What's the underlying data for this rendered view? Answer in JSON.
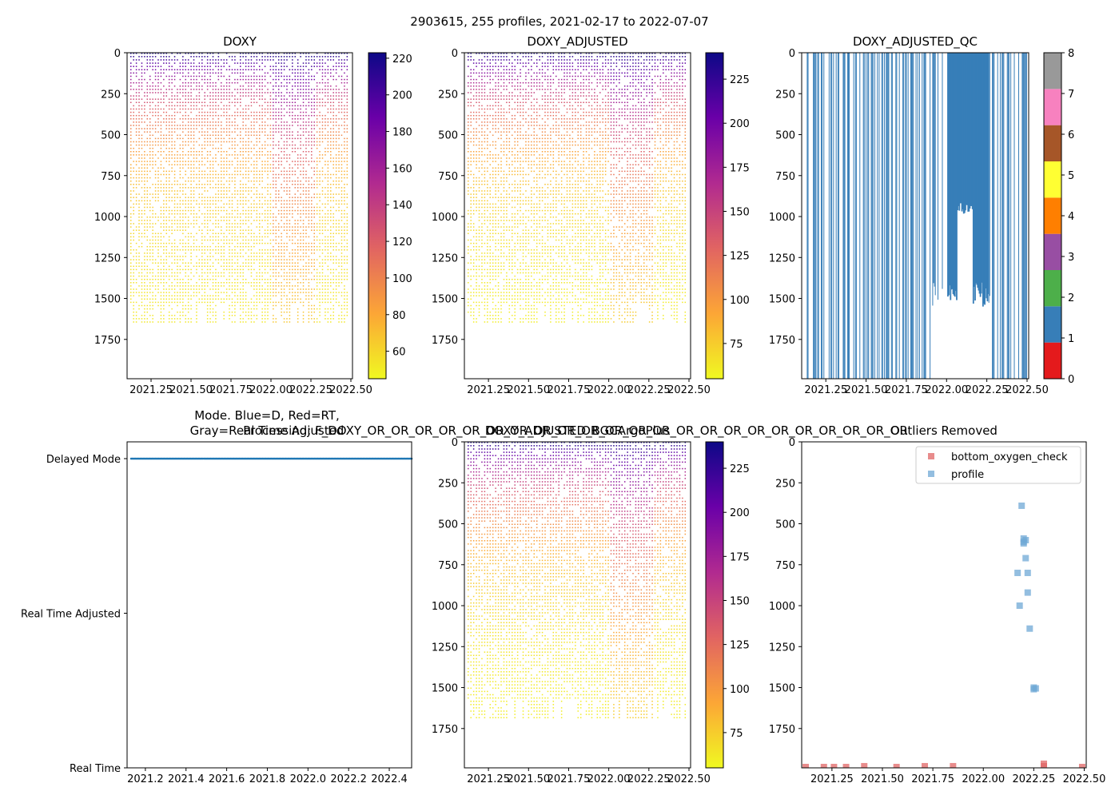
{
  "figure": {
    "suptitle": "2903615, 255 profiles, 2021-02-17 to 2022-07-07"
  },
  "colors": {
    "cmap_plasma_r": [
      "#f0f921",
      "#fca636",
      "#e16462",
      "#b12a90",
      "#6a00a8",
      "#0d0887"
    ],
    "qc_colors": [
      "#e41a1c",
      "#377eb8",
      "#4daf4a",
      "#984ea3",
      "#ff7f00",
      "#ffff33",
      "#a65628",
      "#f781bf",
      "#999999"
    ],
    "profile_blue": "#1f77b4",
    "scatter_blue": "#6fa8d6",
    "scatter_red": "#e06666"
  },
  "chart_data": [
    {
      "id": "doxy",
      "type": "heatmap",
      "title": "DOXY",
      "xlim": [
        2021.1,
        2022.51
      ],
      "ylim": [
        1990,
        0
      ],
      "xticks": [
        2021.25,
        2021.5,
        2021.75,
        2022.0,
        2022.25,
        2022.5
      ],
      "xtick_labels": [
        "2021.25",
        "2021.50",
        "2021.75",
        "2022.00",
        "2022.25",
        "2022.50"
      ],
      "yticks": [
        0,
        250,
        500,
        750,
        1000,
        1250,
        1500,
        1750
      ],
      "ytick_labels": [
        "0",
        "250",
        "500",
        "750",
        "1000",
        "1250",
        "1500",
        "1750"
      ],
      "colorbar": {
        "min": 45,
        "max": 223,
        "ticks": [
          "60",
          "80",
          "100",
          "120",
          "140",
          "160",
          "180",
          "200",
          "220"
        ],
        "tick_values": [
          60,
          80,
          100,
          120,
          140,
          160,
          180,
          200,
          220
        ]
      },
      "profile_depth_max": 1650,
      "surface_value": 220,
      "deep_value": 50
    },
    {
      "id": "doxy_adj",
      "type": "heatmap",
      "title": "DOXY_ADJUSTED",
      "xlim": [
        2021.1,
        2022.51
      ],
      "ylim": [
        1990,
        0
      ],
      "xticks": [
        2021.25,
        2021.5,
        2021.75,
        2022.0,
        2022.25,
        2022.5
      ],
      "xtick_labels": [
        "2021.25",
        "2021.50",
        "2021.75",
        "2022.00",
        "2022.25",
        "2022.50"
      ],
      "yticks": [
        0,
        250,
        500,
        750,
        1000,
        1250,
        1500,
        1750
      ],
      "ytick_labels": [
        "0",
        "250",
        "500",
        "750",
        "1000",
        "1250",
        "1500",
        "1750"
      ],
      "colorbar": {
        "min": 55,
        "max": 240,
        "ticks": [
          "75",
          "100",
          "125",
          "150",
          "175",
          "200",
          "225"
        ],
        "tick_values": [
          75,
          100,
          125,
          150,
          175,
          200,
          225
        ]
      },
      "profile_depth_max": 1650,
      "surface_value": 235,
      "deep_value": 58
    },
    {
      "id": "doxy_qc",
      "type": "heatmap",
      "title": "DOXY_ADJUSTED_QC",
      "xlim": [
        2021.1,
        2022.51
      ],
      "ylim": [
        1990,
        0
      ],
      "xticks": [
        2021.25,
        2021.5,
        2021.75,
        2022.0,
        2022.25,
        2022.5
      ],
      "xtick_labels": [
        "2021.25",
        "2021.50",
        "2021.75",
        "2022.00",
        "2022.25",
        "2022.50"
      ],
      "yticks": [
        0,
        250,
        500,
        750,
        1000,
        1250,
        1500,
        1750
      ],
      "ytick_labels": [
        "0",
        "250",
        "500",
        "750",
        "1000",
        "1250",
        "1500",
        "1750"
      ],
      "colorbar": {
        "min": 0,
        "max": 8,
        "ticks": [
          "0",
          "1",
          "2",
          "3",
          "4",
          "5",
          "6",
          "7",
          "8"
        ],
        "tick_values": [
          0,
          1,
          2,
          3,
          4,
          5,
          6,
          7,
          8
        ]
      },
      "qc_value": 1,
      "full_depth": 1990
    },
    {
      "id": "mode",
      "type": "scatter",
      "title": "Mode. Blue=D, Red=RT,\nGray=Real Time Adjusted",
      "xlim": [
        2021.11,
        2022.51
      ],
      "xticks": [
        2021.2,
        2021.4,
        2021.6,
        2021.8,
        2022.0,
        2022.2,
        2022.4
      ],
      "xtick_labels": [
        "2021.2",
        "2021.4",
        "2021.6",
        "2021.8",
        "2022.0",
        "2022.2",
        "2022.4"
      ],
      "categories": [
        "Delayed Mode",
        "Real Time Adjusted",
        "Real Time"
      ],
      "series": [
        {
          "name": "Delayed Mode",
          "category": "Delayed Mode",
          "x_start": 2021.13,
          "x_end": 2022.51,
          "count": 255
        }
      ]
    },
    {
      "id": "bgc",
      "type": "heatmap",
      "title": "DOXY_ADJUSTED_BGCArgoPlus",
      "subtitle": "Processing: F_DOXY_OR_OR_OR_OR_OR_OR_OR_OR_OR_OR_OR_OR_OR_OR_OR_OR_OR_OR_OR_OR_OR_OR_OR",
      "xlim": [
        2021.1,
        2022.51
      ],
      "ylim": [
        1990,
        0
      ],
      "xticks": [
        2021.25,
        2021.5,
        2021.75,
        2022.0,
        2022.25,
        2022.5
      ],
      "xtick_labels": [
        "2021.25",
        "2021.50",
        "2021.75",
        "2022.00",
        "2022.25",
        "2022.50"
      ],
      "yticks": [
        0,
        250,
        500,
        750,
        1000,
        1250,
        1500,
        1750
      ],
      "ytick_labels": [
        "0",
        "250",
        "500",
        "750",
        "1000",
        "1250",
        "1500",
        "1750"
      ],
      "colorbar": {
        "min": 55,
        "max": 240,
        "ticks": [
          "75",
          "100",
          "125",
          "150",
          "175",
          "200",
          "225"
        ],
        "tick_values": [
          75,
          100,
          125,
          150,
          175,
          200,
          225
        ]
      },
      "profile_depth_max": 1680,
      "surface_value": 235,
      "deep_value": 58
    },
    {
      "id": "outliers",
      "type": "scatter",
      "title": "Outliers Removed",
      "xlim": [
        2021.1,
        2022.51
      ],
      "ylim": [
        1990,
        0
      ],
      "xticks": [
        2021.25,
        2021.5,
        2021.75,
        2022.0,
        2022.25,
        2022.5
      ],
      "xtick_labels": [
        "2021.25",
        "2021.50",
        "2021.75",
        "2022.00",
        "2022.25",
        "2022.50"
      ],
      "yticks": [
        0,
        250,
        500,
        750,
        1000,
        1250,
        1500,
        1750
      ],
      "ytick_labels": [
        "0",
        "250",
        "500",
        "750",
        "1000",
        "1250",
        "1500",
        "1750"
      ],
      "legend": [
        "bottom_oxygen_check",
        "profile"
      ],
      "legend_position": "upper right",
      "series": [
        {
          "name": "bottom_oxygen_check",
          "x": [
            2021.12,
            2021.21,
            2021.26,
            2021.32,
            2021.41,
            2021.57,
            2021.71,
            2021.85,
            2022.3,
            2022.3,
            2022.49
          ],
          "y": [
            1985,
            1985,
            1985,
            1985,
            1980,
            1985,
            1980,
            1980,
            1980,
            1965,
            1985
          ]
        },
        {
          "name": "profile",
          "x": [
            2022.19,
            2022.2,
            2022.2,
            2022.2,
            2022.21,
            2022.21,
            2022.17,
            2022.22,
            2022.22,
            2022.18,
            2022.23,
            2022.25,
            2022.26,
            2022.25
          ],
          "y": [
            390,
            590,
            610,
            620,
            600,
            710,
            800,
            800,
            920,
            1000,
            1140,
            1500,
            1505,
            1510
          ]
        }
      ]
    }
  ]
}
